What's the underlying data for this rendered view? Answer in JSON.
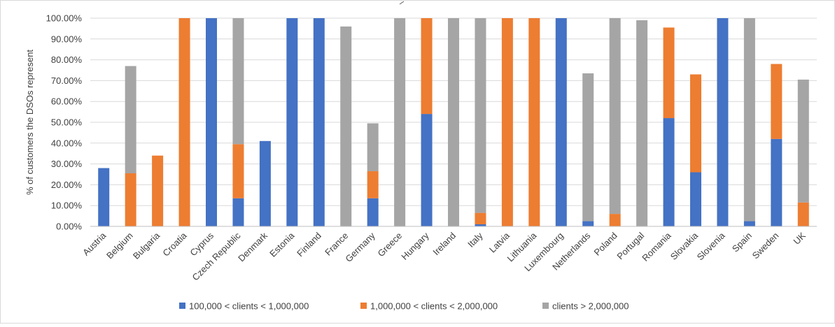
{
  "chart_data": {
    "type": "bar",
    "stacked": true,
    "ylabel": "% of customers the DSOs represent",
    "xlabel": "",
    "ylim": [
      0,
      100
    ],
    "y_ticks": [
      "0.00%",
      "10.00%",
      "20.00%",
      "30.00%",
      "40.00%",
      "50.00%",
      "60.00%",
      "70.00%",
      "80.00%",
      "90.00%",
      "100.00%"
    ],
    "grid": true,
    "legend_position": "bottom",
    "categories": [
      "Austria",
      "Belgium",
      "Bulgaria",
      "Croatia",
      "Cyprus",
      "Czech Republic",
      "Denmark",
      "Estonia",
      "Finland",
      "France",
      "Germany",
      "Greece",
      "Hungary",
      "Ireland",
      "Italy",
      "Latvia",
      "Lithuania",
      "Luxembourg",
      "Netherlands",
      "Poland",
      "Portugal",
      "Romania",
      "Slovakia",
      "Slovenia",
      "Spain",
      "Sweden",
      "UK"
    ],
    "series": [
      {
        "name": "100,000 < clients < 1,000,000",
        "color": "#4472c4",
        "values": [
          28,
          0,
          0,
          0,
          100,
          13.5,
          41,
          100,
          100,
          0,
          13.5,
          0,
          54,
          0,
          1,
          0,
          0,
          100,
          2.5,
          0,
          0,
          52,
          26,
          100,
          2.5,
          42,
          0
        ]
      },
      {
        "name": "1,000,000 < clients < 2,000,000",
        "color": "#ed7d31",
        "values": [
          0,
          25.5,
          34,
          100,
          0,
          26,
          0,
          0,
          0,
          0,
          13,
          0,
          46,
          0,
          5.5,
          100,
          100,
          0,
          0,
          6,
          0,
          43.5,
          47,
          0,
          0,
          36,
          11.5
        ]
      },
      {
        "name": "clients > 2,000,000",
        "color": "#a5a5a5",
        "values": [
          0,
          51.5,
          0,
          0,
          0,
          60.5,
          0,
          0,
          0,
          96,
          23,
          100,
          0,
          100,
          93.5,
          0,
          0,
          0,
          71,
          94,
          99,
          0,
          0,
          0,
          97.5,
          0,
          59
        ]
      }
    ]
  }
}
